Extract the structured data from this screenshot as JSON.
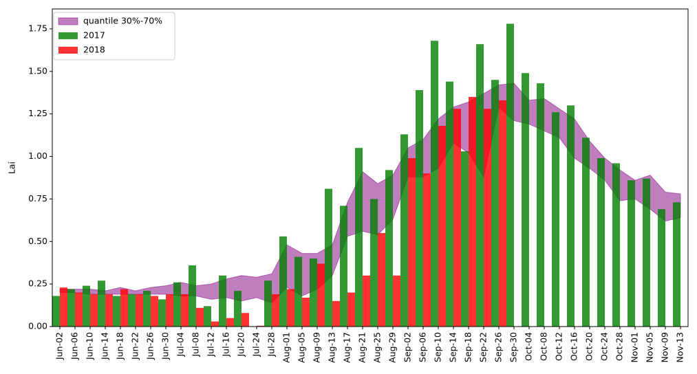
{
  "chart_data": {
    "type": "bar",
    "y_label": "Lai",
    "categories": [
      "Jun-02",
      "Jun-06",
      "Jun-10",
      "Jun-14",
      "Jun-18",
      "Jun-22",
      "Jun-26",
      "Jun-30",
      "Jul-04",
      "Jul-08",
      "Jul-12",
      "Jul-16",
      "Jul-20",
      "Jul-24",
      "Jul-28",
      "Aug-01",
      "Aug-05",
      "Aug-09",
      "Aug-13",
      "Aug-17",
      "Aug-21",
      "Aug-25",
      "Aug-29",
      "Sep-02",
      "Sep-06",
      "Sep-10",
      "Sep-14",
      "Sep-18",
      "Sep-22",
      "Sep-26",
      "Sep-30",
      "Oct-04",
      "Oct-08",
      "Oct-12",
      "Oct-16",
      "Oct-20",
      "Oct-24",
      "Oct-28",
      "Nov-01",
      "Nov-05",
      "Nov-09",
      "Nov-13"
    ],
    "band": {
      "name": "quantile 30%-70%",
      "color": "#800080",
      "upper": [
        0.22,
        0.22,
        0.22,
        0.21,
        0.23,
        0.21,
        0.23,
        0.24,
        0.26,
        0.24,
        0.25,
        0.28,
        0.3,
        0.29,
        0.31,
        0.48,
        0.43,
        0.43,
        0.48,
        0.73,
        0.91,
        0.84,
        0.89,
        1.05,
        1.1,
        1.22,
        1.29,
        1.32,
        1.37,
        1.42,
        1.43,
        1.33,
        1.34,
        1.28,
        1.22,
        1.09,
        0.99,
        0.92,
        0.86,
        0.89,
        0.79,
        0.78
      ],
      "lower": [
        0.2,
        0.2,
        0.19,
        0.19,
        0.19,
        0.19,
        0.19,
        0.19,
        0.18,
        0.18,
        0.16,
        0.17,
        0.15,
        0.17,
        0.14,
        0.23,
        0.18,
        0.22,
        0.3,
        0.53,
        0.56,
        0.54,
        0.63,
        0.88,
        0.88,
        0.93,
        1.08,
        1.02,
        0.88,
        1.29,
        1.21,
        1.19,
        1.15,
        1.11,
        0.99,
        0.93,
        0.86,
        0.74,
        0.75,
        0.69,
        0.62,
        0.64
      ]
    },
    "series": [
      {
        "name": "2017",
        "color": "#008000",
        "values": [
          0.18,
          0.22,
          0.24,
          0.27,
          0.18,
          0.19,
          0.21,
          0.16,
          0.26,
          0.36,
          0.12,
          0.3,
          0.21,
          null,
          0.27,
          0.53,
          0.41,
          0.4,
          0.81,
          0.71,
          1.05,
          0.75,
          0.92,
          1.13,
          1.39,
          1.68,
          1.44,
          1.03,
          1.66,
          1.45,
          1.78,
          1.49,
          1.43,
          1.26,
          1.3,
          1.11,
          0.99,
          0.96,
          0.86,
          0.87,
          0.69,
          0.73
        ]
      },
      {
        "name": "2018",
        "color": "#ff0000",
        "values": [
          0.23,
          0.2,
          0.19,
          0.19,
          0.22,
          0.19,
          0.18,
          0.19,
          0.19,
          0.11,
          0.03,
          0.05,
          0.08,
          0.005,
          0.19,
          0.22,
          0.17,
          0.37,
          0.15,
          0.2,
          0.3,
          0.55,
          0.3,
          0.99,
          0.9,
          1.18,
          1.28,
          1.35,
          1.28,
          1.33,
          null,
          null,
          null,
          null,
          null,
          null,
          null,
          null,
          null,
          null,
          null,
          null
        ]
      }
    ],
    "ylim": [
      0,
      1.867
    ],
    "yticks": [
      {
        "value": 0,
        "label": "0.00"
      },
      0.25,
      {
        "value": 0.5,
        "label": "0.50"
      },
      0.75,
      {
        "value": 1,
        "label": "1.00"
      },
      1.25,
      {
        "value": 1.5,
        "label": "1.50"
      },
      1.75
    ],
    "legend": "upper left"
  }
}
